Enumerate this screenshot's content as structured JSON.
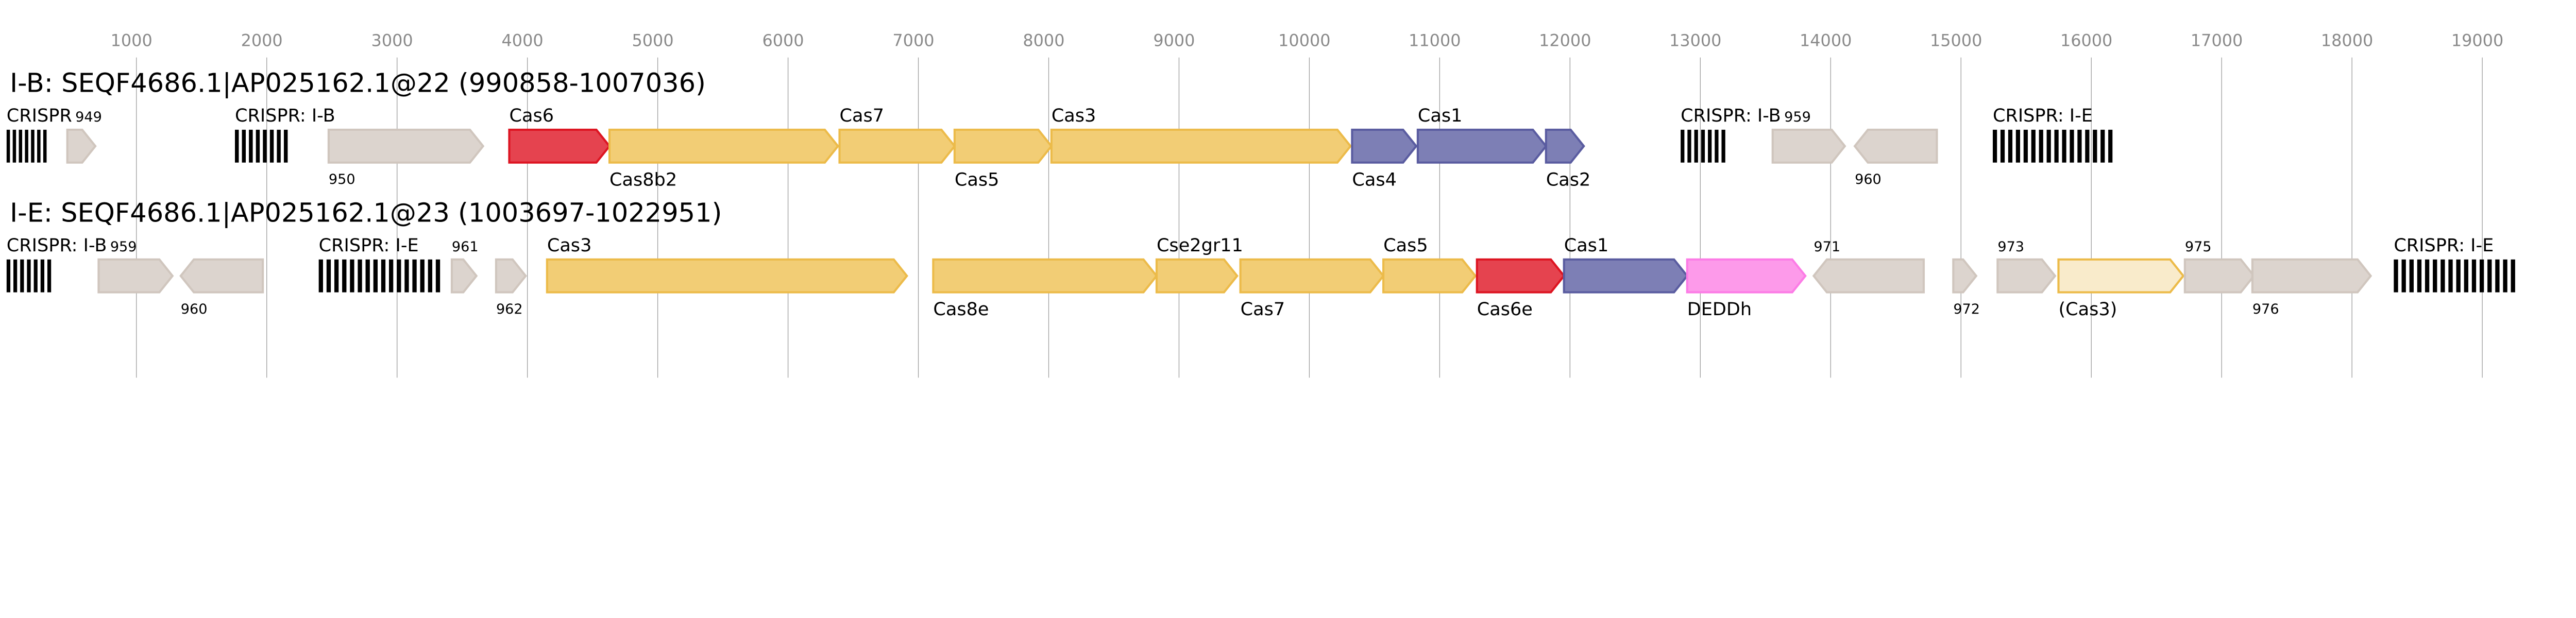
{
  "axis": {
    "ticks": [
      1000,
      2000,
      3000,
      4000,
      5000,
      6000,
      7000,
      8000,
      9000,
      10000,
      11000,
      12000,
      13000,
      14000,
      15000,
      16000,
      17000,
      18000,
      19000
    ],
    "unit": "bp"
  },
  "colors": {
    "other": {
      "fill": "#dcd4ce",
      "stroke": "#d0c6be"
    },
    "adaptation": {
      "fill": "#7d7fb5",
      "stroke": "#5a5ca0"
    },
    "interference": {
      "fill": "#f2cd75",
      "stroke": "#ecbb4a"
    },
    "cas6": {
      "fill": "#e5434f",
      "stroke": "#dd1522"
    },
    "accessory": {
      "fill": "#fd9aea",
      "stroke": "#fc7ce6"
    },
    "partial": {
      "fill": "#f9ebcb",
      "stroke": "#ecbb4a"
    },
    "crispr": "#000000"
  },
  "loci": [
    {
      "title": "I-B: SEQF4686.1|AP025162.1@22 (990858-1007036)",
      "features": [
        {
          "kind": "crispr",
          "label": "CRISPR",
          "start": 4,
          "end": 332,
          "repeats": 7,
          "pos": "above"
        },
        {
          "kind": "gene",
          "label": "949",
          "start": 470,
          "end": 685,
          "strand": "+",
          "class": "other",
          "pos": "above-small"
        },
        {
          "kind": "crispr",
          "label": "CRISPR: I-B",
          "start": 1756,
          "end": 2185,
          "repeats": 8,
          "pos": "above"
        },
        {
          "kind": "gene",
          "label": "950",
          "start": 2475,
          "end": 3660,
          "strand": "+",
          "class": "other",
          "pos": "below-small"
        },
        {
          "kind": "gene",
          "label": "Cas6",
          "start": 3861,
          "end": 4630,
          "strand": "+",
          "class": "cas6",
          "pos": "above"
        },
        {
          "kind": "gene",
          "label": "Cas8b2",
          "start": 4630,
          "end": 6383,
          "strand": "+",
          "class": "interference",
          "pos": "below"
        },
        {
          "kind": "gene",
          "label": "Cas7",
          "start": 6395,
          "end": 7278,
          "strand": "+",
          "class": "interference",
          "pos": "above"
        },
        {
          "kind": "gene",
          "label": "Cas5",
          "start": 7278,
          "end": 8021,
          "strand": "+",
          "class": "interference",
          "pos": "below"
        },
        {
          "kind": "gene",
          "label": "Cas3",
          "start": 8021,
          "end": 10316,
          "strand": "+",
          "class": "interference",
          "pos": "above"
        },
        {
          "kind": "gene",
          "label": "Cas4",
          "start": 10328,
          "end": 10820,
          "strand": "+",
          "class": "adaptation",
          "pos": "below"
        },
        {
          "kind": "gene",
          "label": "Cas1",
          "start": 10832,
          "end": 11816,
          "strand": "+",
          "class": "adaptation",
          "pos": "above"
        },
        {
          "kind": "gene",
          "label": "Cas2",
          "start": 11816,
          "end": 12106,
          "strand": "+",
          "class": "adaptation",
          "pos": "below"
        },
        {
          "kind": "crispr",
          "label": "CRISPR: I-B",
          "start": 12849,
          "end": 13215,
          "repeats": 7,
          "pos": "above"
        },
        {
          "kind": "gene",
          "label": "959",
          "start": 13555,
          "end": 14109,
          "strand": "+",
          "class": "other",
          "pos": "above-small"
        },
        {
          "kind": "gene",
          "label": "960",
          "start": 14185,
          "end": 14815,
          "strand": "-",
          "class": "other",
          "pos": "below-small"
        },
        {
          "kind": "crispr",
          "label": "CRISPR: I-E",
          "start": 15244,
          "end": 16189,
          "repeats": 16,
          "pos": "above"
        }
      ]
    },
    {
      "title": "I-E: SEQF4686.1|AP025162.1@23 (1003697-1022951)",
      "features": [
        {
          "kind": "crispr",
          "label": "CRISPR: I-B",
          "start": 4,
          "end": 369,
          "repeats": 7,
          "pos": "above"
        },
        {
          "kind": "gene",
          "label": "959",
          "start": 710,
          "end": 1277,
          "strand": "+",
          "class": "other",
          "pos": "above-small"
        },
        {
          "kind": "gene",
          "label": "960",
          "start": 1340,
          "end": 1970,
          "strand": "-",
          "class": "other",
          "pos": "below-small"
        },
        {
          "kind": "crispr",
          "label": "CRISPR: I-E",
          "start": 2399,
          "end": 3357,
          "repeats": 16,
          "pos": "above"
        },
        {
          "kind": "gene",
          "label": "961",
          "start": 3420,
          "end": 3609,
          "strand": "+",
          "class": "other",
          "pos": "above-small"
        },
        {
          "kind": "gene",
          "label": "962",
          "start": 3760,
          "end": 3987,
          "strand": "+",
          "class": "other",
          "pos": "below-small"
        },
        {
          "kind": "gene",
          "label": "Cas3",
          "start": 4151,
          "end": 6912,
          "strand": "+",
          "class": "interference",
          "pos": "above"
        },
        {
          "kind": "gene",
          "label": "Cas8e",
          "start": 7114,
          "end": 8828,
          "strand": "+",
          "class": "interference",
          "pos": "below"
        },
        {
          "kind": "gene",
          "label": "Cse2gr11",
          "start": 8828,
          "end": 9446,
          "strand": "+",
          "class": "interference",
          "pos": "above"
        },
        {
          "kind": "gene",
          "label": "Cas7",
          "start": 9471,
          "end": 10568,
          "strand": "+",
          "class": "interference",
          "pos": "below"
        },
        {
          "kind": "gene",
          "label": "Cas5",
          "start": 10568,
          "end": 11274,
          "strand": "+",
          "class": "interference",
          "pos": "above"
        },
        {
          "kind": "gene",
          "label": "Cas6e",
          "start": 11286,
          "end": 11954,
          "strand": "+",
          "class": "cas6",
          "pos": "below"
        },
        {
          "kind": "gene",
          "label": "Cas1",
          "start": 11954,
          "end": 12899,
          "strand": "+",
          "class": "adaptation",
          "pos": "above"
        },
        {
          "kind": "gene",
          "label": "DEDDh",
          "start": 12899,
          "end": 13806,
          "strand": "+",
          "class": "accessory",
          "pos": "below"
        },
        {
          "kind": "gene",
          "label": "971",
          "start": 13870,
          "end": 14714,
          "strand": "-",
          "class": "other",
          "pos": "above-small"
        },
        {
          "kind": "gene",
          "label": "972",
          "start": 14941,
          "end": 15117,
          "strand": "+",
          "class": "other",
          "pos": "below-small"
        },
        {
          "kind": "gene",
          "label": "973",
          "start": 15281,
          "end": 15722,
          "strand": "+",
          "class": "other",
          "pos": "above-small"
        },
        {
          "kind": "gene",
          "label": "(Cas3)",
          "start": 15748,
          "end": 16706,
          "strand": "+",
          "class": "partial",
          "pos": "below"
        },
        {
          "kind": "gene",
          "label": "975",
          "start": 16718,
          "end": 17248,
          "strand": "+",
          "class": "other",
          "pos": "above-small"
        },
        {
          "kind": "gene",
          "label": "976",
          "start": 17236,
          "end": 18144,
          "strand": "+",
          "class": "other",
          "pos": "below-small"
        },
        {
          "kind": "crispr",
          "label": "CRISPR: I-E",
          "start": 18321,
          "end": 19279,
          "repeats": 16,
          "pos": "above"
        }
      ]
    }
  ]
}
